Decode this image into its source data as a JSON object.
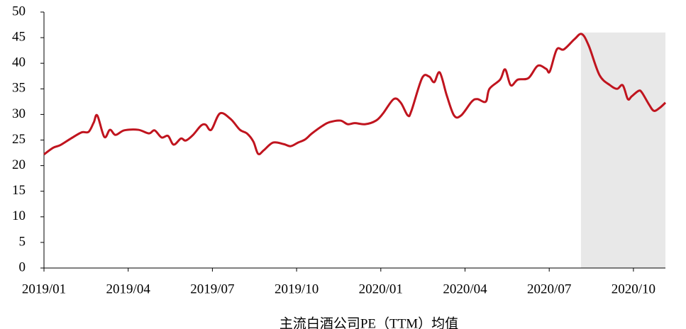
{
  "chart_data": {
    "type": "line",
    "caption": "主流白酒公司PE（TTM）均值",
    "x": [
      0.0,
      0.33,
      0.58,
      0.96,
      1.34,
      1.59,
      1.77,
      1.9,
      2.15,
      2.35,
      2.55,
      2.86,
      3.36,
      3.74,
      3.94,
      4.19,
      4.42,
      4.62,
      4.88,
      5.05,
      5.31,
      5.59,
      5.76,
      5.96,
      6.27,
      6.65,
      6.98,
      7.23,
      7.46,
      7.63,
      7.83,
      8.16,
      8.54,
      8.79,
      9.05,
      9.3,
      9.55,
      9.93,
      10.18,
      10.56,
      10.82,
      11.07,
      11.45,
      11.83,
      12.08,
      12.46,
      12.71,
      12.96,
      13.09,
      13.47,
      13.72,
      13.9,
      14.1,
      14.35,
      14.61,
      14.86,
      15.24,
      15.44,
      15.74,
      15.87,
      16.25,
      16.43,
      16.63,
      16.88,
      17.26,
      17.59,
      17.89,
      18.02,
      18.27,
      18.52,
      18.9,
      19.16,
      19.41,
      19.79,
      20.17,
      20.42,
      20.62,
      20.8,
      20.93,
      21.18,
      21.3,
      21.56,
      21.73,
      21.94,
      22.14
    ],
    "series": [
      {
        "color": "#c0141e",
        "values": [
          22.2,
          23.5,
          24.0,
          25.3,
          26.5,
          26.6,
          28.4,
          29.8,
          25.6,
          27.0,
          26.0,
          26.9,
          27.0,
          26.3,
          26.9,
          25.5,
          25.8,
          24.1,
          25.3,
          24.9,
          26.0,
          27.8,
          28.0,
          27.0,
          30.2,
          29.1,
          27.0,
          26.3,
          24.7,
          22.3,
          23.0,
          24.5,
          24.2,
          23.8,
          24.5,
          25.1,
          26.3,
          27.8,
          28.5,
          28.8,
          28.1,
          28.3,
          28.1,
          28.8,
          30.2,
          33.0,
          32.3,
          29.8,
          30.7,
          37.1,
          37.4,
          36.3,
          38.2,
          33.7,
          29.8,
          29.8,
          32.5,
          33.0,
          32.5,
          35.0,
          36.8,
          38.8,
          35.7,
          36.8,
          37.1,
          39.5,
          38.9,
          38.4,
          42.7,
          42.7,
          44.7,
          45.7,
          43.4,
          37.7,
          35.7,
          35.0,
          35.7,
          33.0,
          33.5,
          34.6,
          34.3,
          31.9,
          30.7,
          31.3,
          32.3
        ]
      }
    ],
    "highlight": {
      "xlim": [
        19.13,
        22.14
      ],
      "ylim": [
        0,
        46
      ],
      "color": "#e8e8e8"
    },
    "xlim": [
      0,
      22.14
    ],
    "xticks": [
      {
        "value": 0,
        "label": "2019/01"
      },
      {
        "value": 3,
        "label": "2019/04"
      },
      {
        "value": 6,
        "label": "2019/07"
      },
      {
        "value": 9,
        "label": "2019/10"
      },
      {
        "value": 12,
        "label": "2020/01"
      },
      {
        "value": 15,
        "label": "2020/04"
      },
      {
        "value": 18,
        "label": "2020/07"
      },
      {
        "value": 21,
        "label": "2020/10"
      }
    ],
    "ylim": [
      0,
      50
    ],
    "yticks": [
      0,
      5,
      10,
      15,
      20,
      25,
      30,
      35,
      40,
      45,
      50
    ]
  }
}
